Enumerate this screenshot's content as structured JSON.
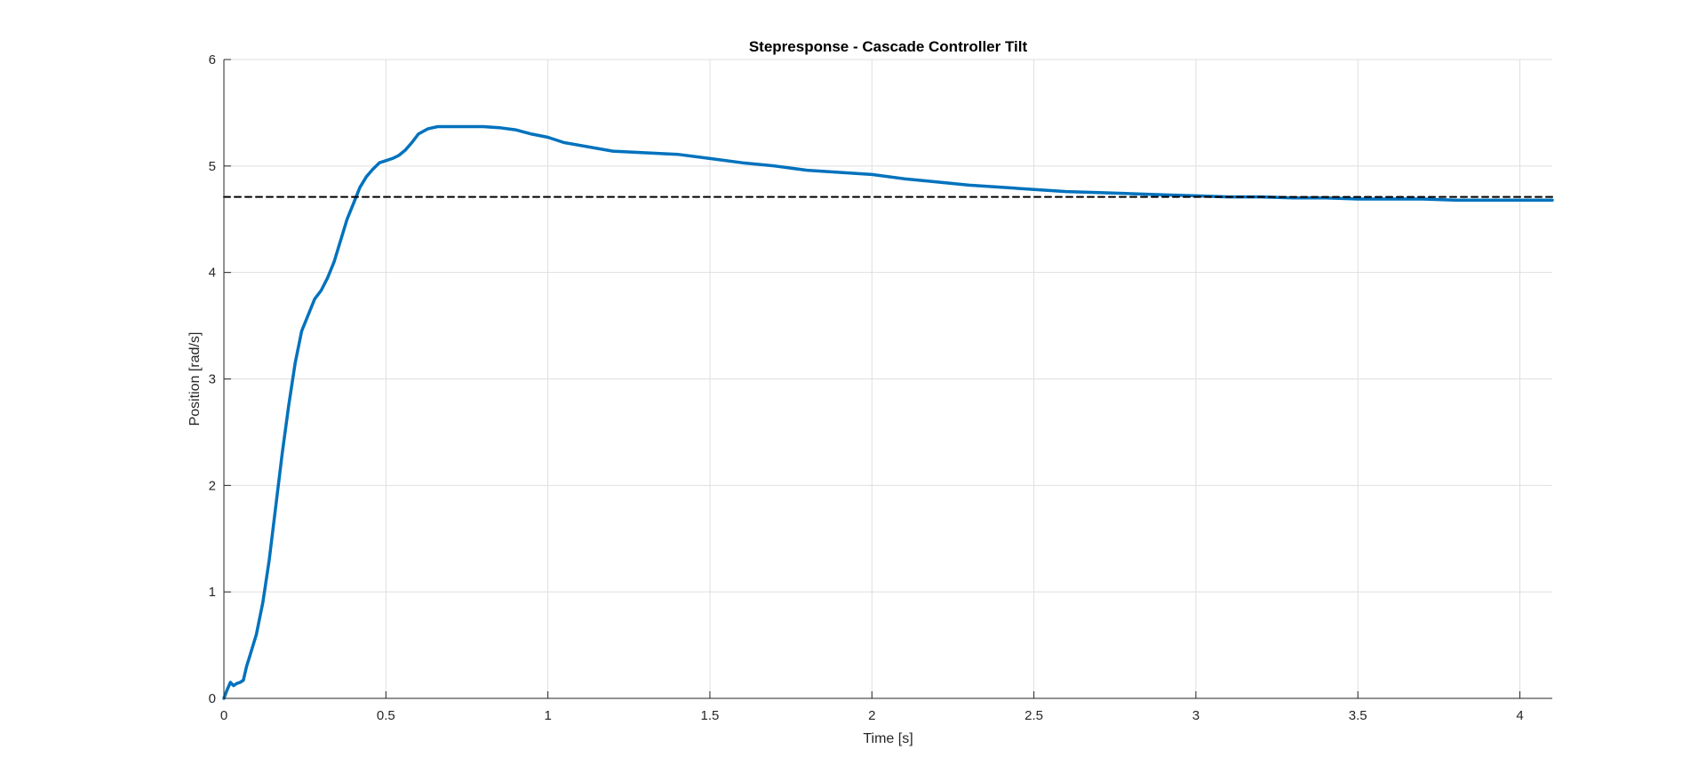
{
  "chart_data": {
    "type": "line",
    "title": "Stepresponse - Cascade Controller Tilt",
    "xlabel": "Time [s]",
    "ylabel": "Position [rad/s]",
    "xlim": [
      0,
      4.1
    ],
    "ylim": [
      0,
      6
    ],
    "xticks": [
      0,
      0.5,
      1,
      1.5,
      2,
      2.5,
      3,
      3.5,
      4
    ],
    "xtick_labels": [
      "0",
      "0.5",
      "1",
      "1.5",
      "2",
      "2.5",
      "3",
      "3.5",
      "4"
    ],
    "yticks": [
      0,
      1,
      2,
      3,
      4,
      5,
      6
    ],
    "ytick_labels": [
      "0",
      "1",
      "2",
      "3",
      "4",
      "5",
      "6"
    ],
    "grid": true,
    "series": [
      {
        "color": "#0072BD",
        "line_style": "solid",
        "x": [
          0,
          0.01,
          0.02,
          0.03,
          0.04,
          0.05,
          0.06,
          0.07,
          0.08,
          0.1,
          0.12,
          0.14,
          0.16,
          0.18,
          0.2,
          0.22,
          0.24,
          0.26,
          0.28,
          0.3,
          0.32,
          0.34,
          0.36,
          0.38,
          0.4,
          0.42,
          0.44,
          0.46,
          0.48,
          0.5,
          0.52,
          0.54,
          0.56,
          0.58,
          0.6,
          0.63,
          0.66,
          0.7,
          0.75,
          0.8,
          0.85,
          0.9,
          0.95,
          1.0,
          1.05,
          1.2,
          1.4,
          1.5,
          1.6,
          1.7,
          1.8,
          1.9,
          2.0,
          2.1,
          2.2,
          2.3,
          2.4,
          2.5,
          2.6,
          2.7,
          2.8,
          2.9,
          3.0,
          3.1,
          3.2,
          3.3,
          3.4,
          3.5,
          3.6,
          3.7,
          3.8,
          3.9,
          4.0,
          4.1
        ],
        "y": [
          0,
          0.08,
          0.15,
          0.12,
          0.14,
          0.15,
          0.17,
          0.3,
          0.4,
          0.6,
          0.9,
          1.3,
          1.8,
          2.3,
          2.75,
          3.15,
          3.45,
          3.6,
          3.75,
          3.83,
          3.95,
          4.1,
          4.3,
          4.5,
          4.65,
          4.8,
          4.9,
          4.97,
          5.03,
          5.05,
          5.07,
          5.1,
          5.15,
          5.22,
          5.3,
          5.35,
          5.37,
          5.37,
          5.37,
          5.37,
          5.36,
          5.34,
          5.3,
          5.27,
          5.22,
          5.14,
          5.11,
          5.07,
          5.03,
          5.0,
          4.96,
          4.94,
          4.92,
          4.88,
          4.85,
          4.82,
          4.8,
          4.78,
          4.76,
          4.75,
          4.74,
          4.73,
          4.72,
          4.71,
          4.71,
          4.7,
          4.7,
          4.69,
          4.69,
          4.69,
          4.68,
          4.68,
          4.68,
          4.68
        ]
      },
      {
        "color": "#000000",
        "line_style": "dashed",
        "x": [
          0,
          4.1
        ],
        "y": [
          4.71,
          4.71
        ]
      }
    ]
  }
}
